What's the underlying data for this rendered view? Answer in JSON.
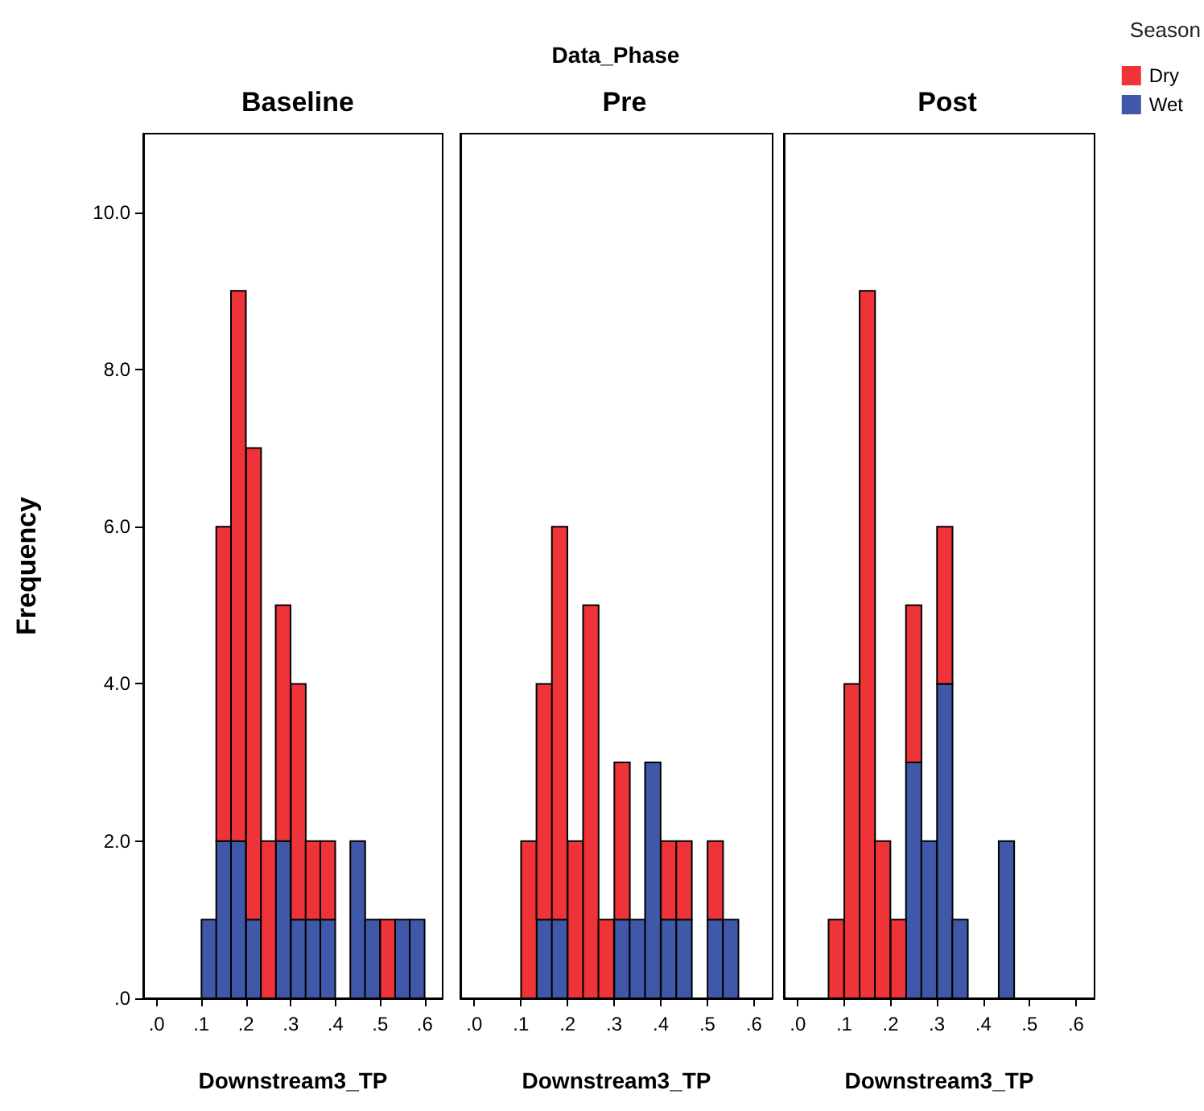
{
  "chart_data": [
    {
      "type": "bar",
      "title": "Baseline",
      "annotations": [
        "Data_Phase"
      ],
      "xlabel": "Downstream3_TP",
      "ylabel": "Frequency",
      "stacked": true,
      "grid": false,
      "legend": false,
      "x": [
        0.117,
        0.15,
        0.183,
        0.217,
        0.25,
        0.283,
        0.317,
        0.35,
        0.383,
        0.417,
        0.45,
        0.483,
        0.517,
        0.55,
        0.583
      ],
      "series": [
        {
          "color": "#3f58a8",
          "values": [
            1,
            2,
            2,
            1,
            0,
            2,
            1,
            1,
            1,
            0,
            2,
            1,
            0,
            1,
            1
          ]
        },
        {
          "color": "#ef3439",
          "values": [
            0,
            4,
            7,
            6,
            2,
            3,
            3,
            1,
            1,
            0,
            0,
            0,
            1,
            0,
            0
          ]
        }
      ],
      "xlim": [
        -0.03,
        0.64
      ],
      "xticks": [
        {
          "value": 0,
          "label": ".0"
        },
        {
          "value": 0.1,
          "label": ".1"
        },
        {
          "value": 0.2,
          "label": ".2"
        },
        {
          "value": 0.3,
          "label": ".3"
        },
        {
          "value": 0.4,
          "label": ".4"
        },
        {
          "value": 0.5,
          "label": ".5"
        },
        {
          "value": 0.6,
          "label": ".6"
        }
      ],
      "ylim": [
        0,
        11
      ],
      "yticks": [
        {
          "value": 0,
          "label": ".0"
        },
        {
          "value": 2,
          "label": "2.0"
        },
        {
          "value": 4,
          "label": "4.0"
        },
        {
          "value": 6,
          "label": "6.0"
        },
        {
          "value": 8,
          "label": "8.0"
        },
        {
          "value": 10,
          "label": "10.0"
        }
      ]
    },
    {
      "type": "bar",
      "title": "Pre",
      "xlabel": "Downstream3_TP",
      "stacked": true,
      "grid": false,
      "legend": false,
      "tick_labels": "x",
      "x": [
        0.117,
        0.15,
        0.183,
        0.217,
        0.25,
        0.283,
        0.317,
        0.35,
        0.383,
        0.417,
        0.45,
        0.483,
        0.517,
        0.55
      ],
      "series": [
        {
          "color": "#3f58a8",
          "values": [
            0,
            1,
            1,
            0,
            0,
            0,
            1,
            1,
            3,
            1,
            1,
            0,
            1,
            1
          ]
        },
        {
          "color": "#ef3439",
          "values": [
            2,
            3,
            5,
            2,
            5,
            1,
            2,
            0,
            0,
            1,
            1,
            0,
            1,
            0
          ]
        }
      ],
      "xlim": [
        -0.03,
        0.64
      ],
      "xticks": [
        {
          "value": 0,
          "label": ".0"
        },
        {
          "value": 0.1,
          "label": ".1"
        },
        {
          "value": 0.2,
          "label": ".2"
        },
        {
          "value": 0.3,
          "label": ".3"
        },
        {
          "value": 0.4,
          "label": ".4"
        },
        {
          "value": 0.5,
          "label": ".5"
        },
        {
          "value": 0.6,
          "label": ".6"
        }
      ],
      "ylim": [
        0,
        11
      ]
    },
    {
      "type": "bar",
      "title": "Post",
      "xlabel": "Downstream3_TP",
      "stacked": true,
      "grid": false,
      "legend": "top right",
      "legend_title": "Season",
      "tick_labels": "x",
      "x": [
        0.083,
        0.117,
        0.15,
        0.183,
        0.217,
        0.25,
        0.283,
        0.317,
        0.35,
        0.383,
        0.417,
        0.45
      ],
      "series": [
        {
          "name": "Wet",
          "color": "#3f58a8",
          "values": [
            0,
            0,
            0,
            0,
            0,
            3,
            2,
            4,
            1,
            0,
            0,
            2
          ]
        },
        {
          "name": "Dry",
          "color": "#ef3439",
          "values": [
            1,
            4,
            9,
            2,
            1,
            2,
            0,
            2,
            0,
            0,
            0,
            0
          ]
        }
      ],
      "xlim": [
        -0.03,
        0.64
      ],
      "xticks": [
        {
          "value": 0,
          "label": ".0"
        },
        {
          "value": 0.1,
          "label": ".1"
        },
        {
          "value": 0.2,
          "label": ".2"
        },
        {
          "value": 0.3,
          "label": ".3"
        },
        {
          "value": 0.4,
          "label": ".4"
        },
        {
          "value": 0.5,
          "label": ".5"
        },
        {
          "value": 0.6,
          "label": ".6"
        }
      ],
      "ylim": [
        0,
        11
      ]
    }
  ]
}
